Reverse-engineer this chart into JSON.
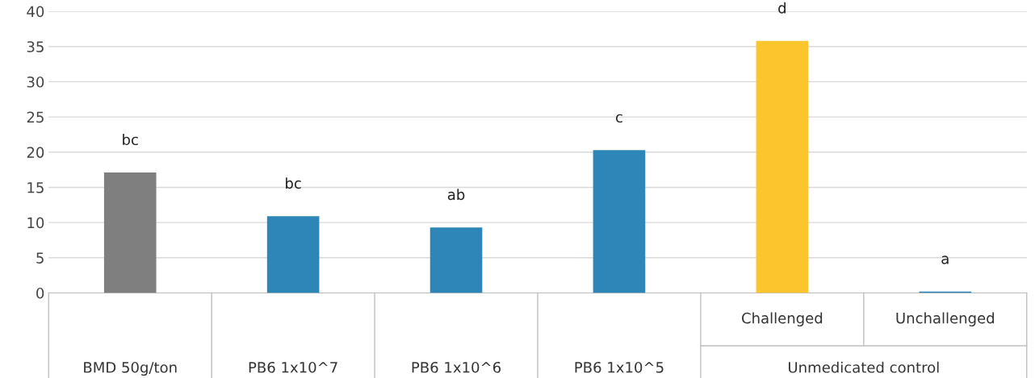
{
  "chart_data": {
    "type": "bar",
    "categories": [
      "BMD 50g/ton",
      "PB6 1x10^7",
      "PB6 1x10^6",
      "PB6 1x10^5",
      "Challenged",
      "Unchallenged"
    ],
    "values": [
      17.1,
      10.9,
      9.3,
      20.3,
      35.8,
      0.2
    ],
    "colors": [
      "#7f7f7f",
      "#2e86b8",
      "#2e86b8",
      "#2e86b8",
      "#fcc42d",
      "#2e86b8"
    ],
    "value_labels": [
      "bc",
      "bc",
      "ab",
      "c",
      "d",
      "a"
    ],
    "annotations": [
      "Unmedicated control"
    ],
    "ylim": [
      0,
      40
    ],
    "yticks": [
      0,
      5,
      10,
      15,
      20,
      25,
      30,
      35,
      40
    ],
    "grid": "y",
    "legend": false
  }
}
